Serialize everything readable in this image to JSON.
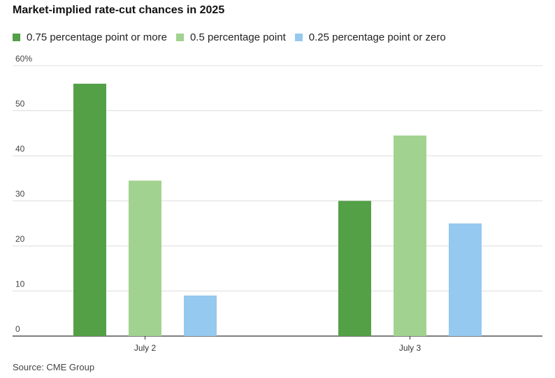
{
  "chart_data": {
    "type": "bar",
    "title": "Market-implied rate-cut chances in 2025",
    "categories": [
      "July 2",
      "July 3"
    ],
    "series": [
      {
        "name": "0.75 percentage point or more",
        "color": "#53a047",
        "values": [
          56,
          30
        ]
      },
      {
        "name": "0.5 percentage point",
        "color": "#a2d28f",
        "values": [
          34.5,
          44.5
        ]
      },
      {
        "name": "0.25 percentage point or zero",
        "color": "#95c9ef",
        "values": [
          9,
          25
        ]
      }
    ],
    "ylim": [
      0,
      60
    ],
    "yticks": [
      {
        "value": 0,
        "label": "0"
      },
      {
        "value": 10,
        "label": "10"
      },
      {
        "value": 20,
        "label": "20"
      },
      {
        "value": 30,
        "label": "30"
      },
      {
        "value": 40,
        "label": "40"
      },
      {
        "value": 50,
        "label": "50"
      },
      {
        "value": 60,
        "label": "60%"
      }
    ],
    "xlabel": "",
    "ylabel": "",
    "grid": true,
    "legend_position": "top-left",
    "source": "Source: CME Group"
  }
}
